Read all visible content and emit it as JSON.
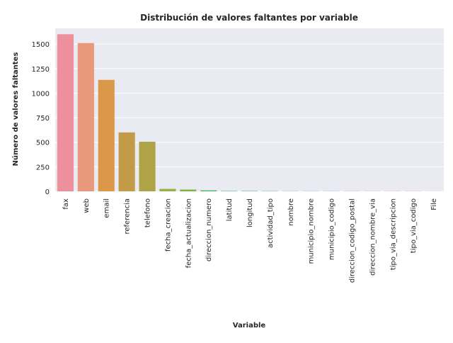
{
  "chart_data": {
    "type": "bar",
    "title": "Distribución de valores faltantes por variable",
    "xlabel": "Variable",
    "ylabel": "Número de valores faltantes",
    "categories": [
      "fax",
      "web",
      "email",
      "referencia",
      "telefono",
      "fecha_creacion",
      "fecha_actualizacion",
      "direccion_numero",
      "latitud",
      "longitud",
      "actividad_tipo",
      "nombre",
      "municipio_nombre",
      "municipio_codigo",
      "direccion_codigo_postal",
      "direccion_nombre_via",
      "tipo_via_descripcion",
      "tipo_via_codigo",
      "File"
    ],
    "values": [
      1600,
      1510,
      1135,
      600,
      505,
      25,
      18,
      10,
      4,
      4,
      3,
      2,
      2,
      2,
      2,
      2,
      2,
      2,
      1
    ],
    "colors": [
      "#EE8F9E",
      "#EA987C",
      "#DB9849",
      "#C39B47",
      "#AEA345",
      "#9BAE47",
      "#7BB548",
      "#49B760",
      "#4AB797",
      "#4BB5AF",
      "#4DB3C0",
      "#52B1CF",
      "#5CADE5",
      "#94A1EE",
      "#B995EF",
      "#D68BE8",
      "#E889D7",
      "#EE8AC2",
      "#EF8CB0"
    ],
    "ylim": [
      0,
      1660
    ],
    "yticks": [
      0,
      250,
      500,
      750,
      1000,
      1250,
      1500
    ],
    "grid": true,
    "legend": "none",
    "style": {
      "background": "#EAEAF2",
      "grid_color": "#FFFFFF",
      "text_color": "#262626"
    }
  }
}
